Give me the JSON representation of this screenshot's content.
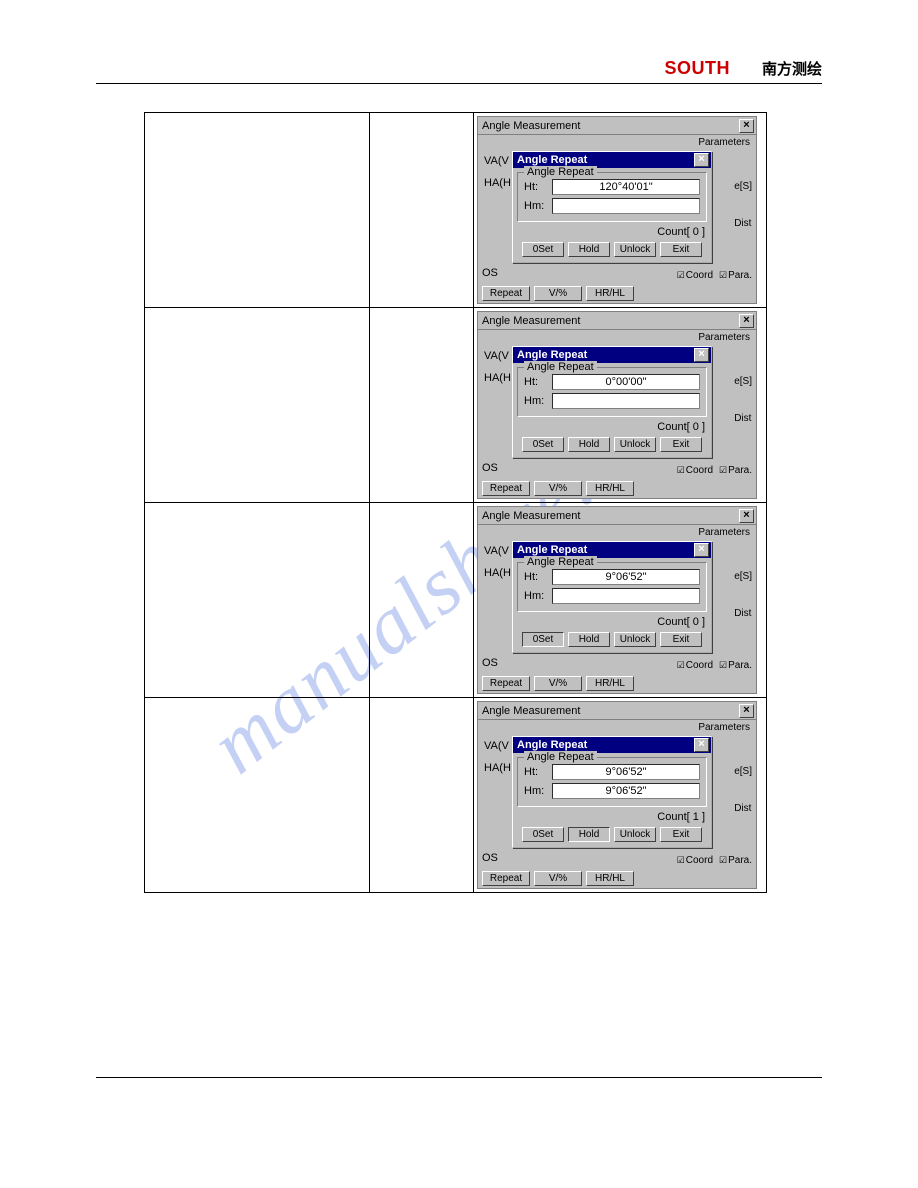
{
  "header": {
    "brand": "SOUTH",
    "cn": "南方测绘"
  },
  "watermark": "manualshive.com",
  "common": {
    "win_title": "Angle Measurement",
    "param": "Parameters",
    "va": "VA(V",
    "ha": "HA(H",
    "dlg_title": "Angle Repeat",
    "legend": "Angle Repeat",
    "lbl_ht": "Ht:",
    "lbl_hm": "Hm:",
    "count_label": "Count[",
    "count_close": "]",
    "btns": {
      "oset": "0Set",
      "hold": "Hold",
      "unlock": "Unlock",
      "exit": "Exit"
    },
    "side": {
      "s": "e[S]",
      "dist": "Dist"
    },
    "os": "OS",
    "coord": "Coord",
    "para": "Para.",
    "bottom": {
      "repeat": "Repeat",
      "vpct": "V/%",
      "hrhl": "HR/HL"
    }
  },
  "rows": [
    {
      "ht": "120°40'01\"",
      "hm": "",
      "count": " 0 ",
      "pressed": ""
    },
    {
      "ht": "0°00'00\"",
      "hm": "",
      "count": " 0 ",
      "pressed": ""
    },
    {
      "ht": "9°06'52\"",
      "hm": "",
      "count": " 0 ",
      "pressed": "oset"
    },
    {
      "ht": "9°06'52\"",
      "hm": "9°06'52\"",
      "count": " 1 ",
      "pressed": "hold"
    }
  ]
}
